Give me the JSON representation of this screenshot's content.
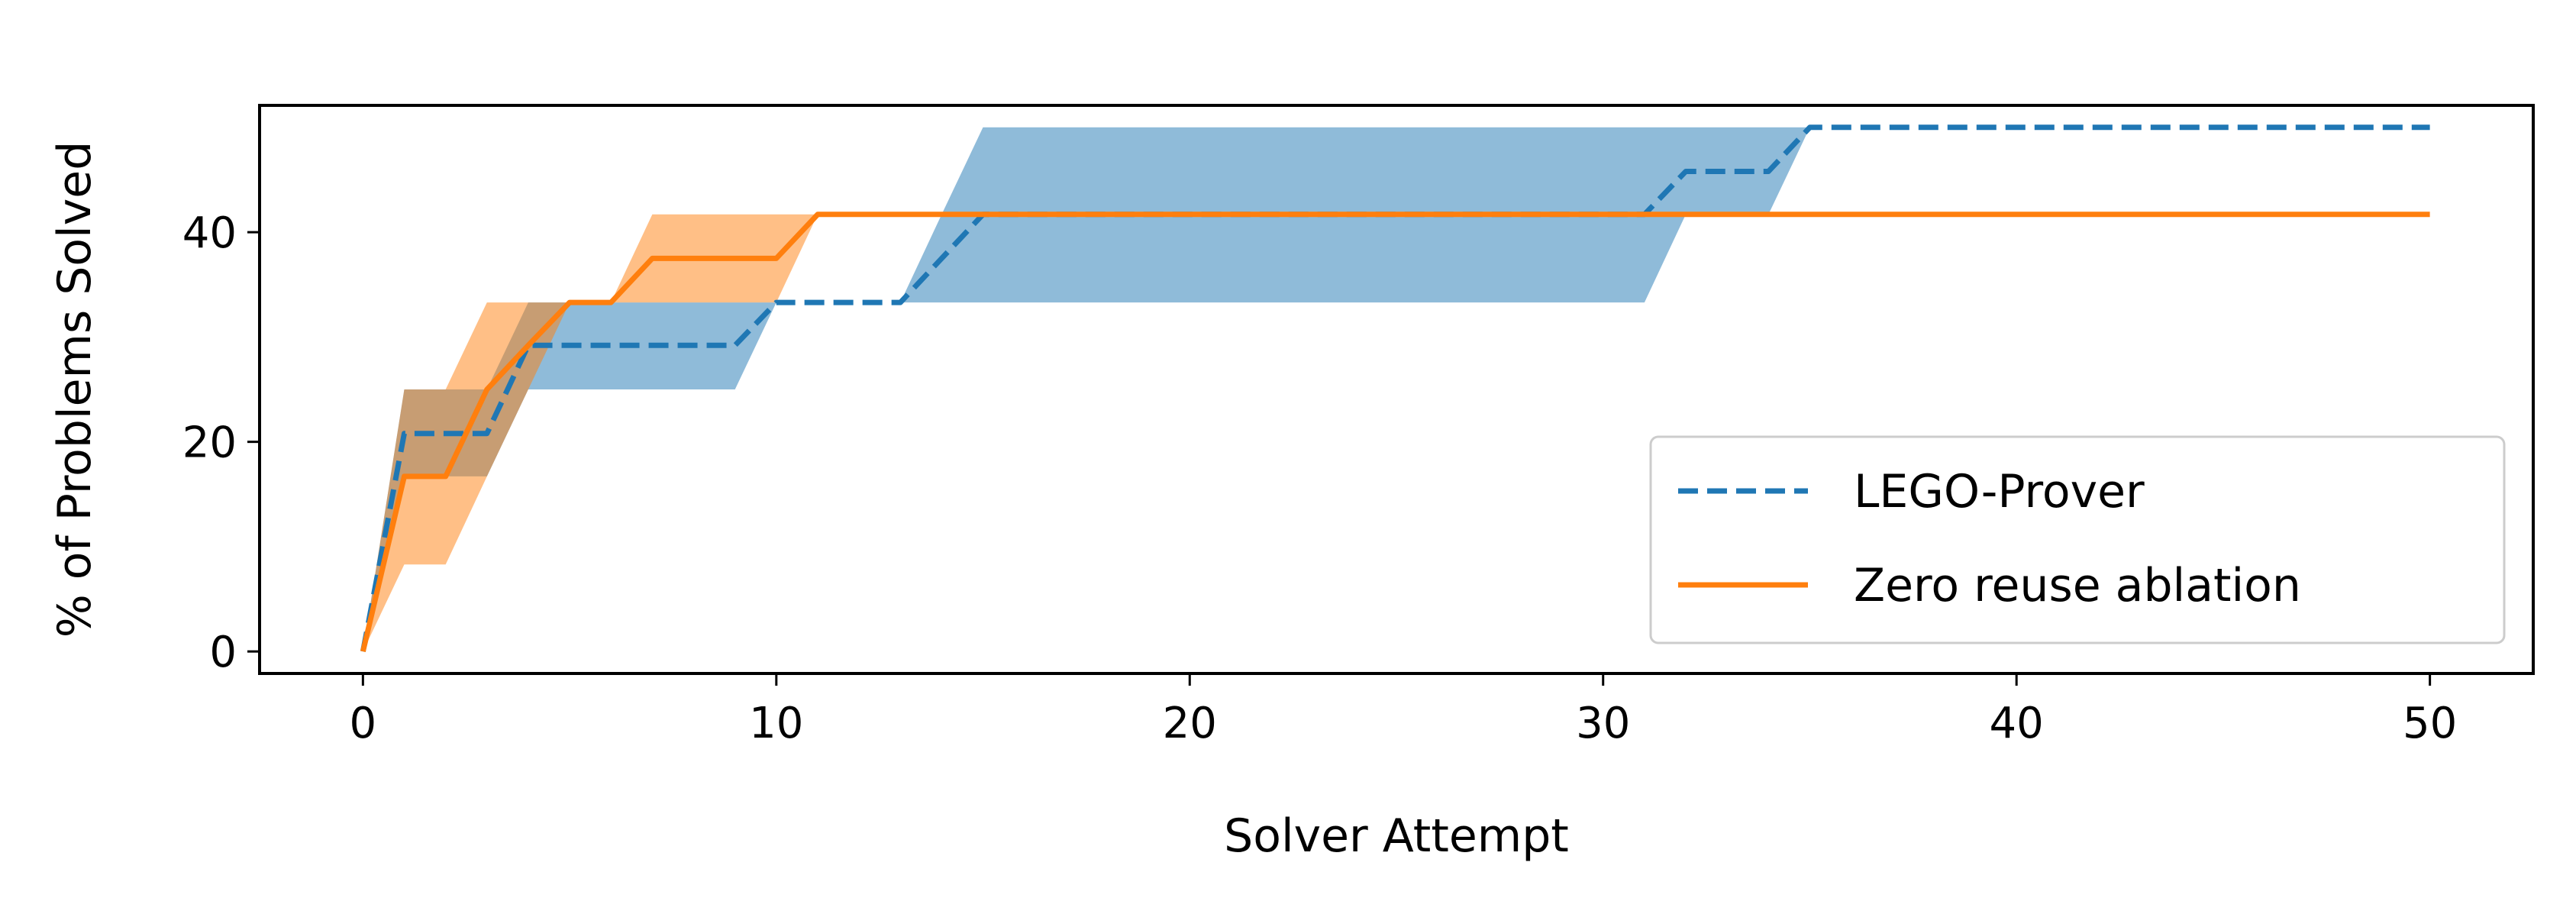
{
  "chart_data": {
    "type": "line",
    "title": "",
    "xlabel": "Solver Attempt",
    "ylabel": "% of Problems Solved",
    "xlim": [
      -2.5,
      52.5
    ],
    "ylim": [
      -2.1,
      52.1
    ],
    "xticks": [
      0,
      10,
      20,
      30,
      40,
      50
    ],
    "yticks": [
      0,
      20,
      40
    ],
    "grid": false,
    "legend_position": "lower right",
    "series": [
      {
        "name": "LEGO-Prover",
        "color": "#1f77b4",
        "linestyle": "dashed",
        "x": [
          0,
          1,
          2,
          3,
          4,
          5,
          6,
          7,
          8,
          9,
          10,
          11,
          12,
          13,
          14,
          15,
          16,
          20,
          25,
          30,
          31,
          32,
          33,
          34,
          35,
          40,
          45,
          50
        ],
        "y": [
          0,
          20.8,
          20.8,
          20.8,
          29.2,
          29.2,
          29.2,
          29.2,
          29.2,
          29.2,
          33.3,
          33.3,
          33.3,
          33.3,
          37.5,
          41.7,
          41.7,
          41.7,
          41.7,
          41.7,
          41.7,
          45.8,
          45.8,
          45.8,
          50.0,
          50.0,
          50.0,
          50.0
        ],
        "band_lower": [
          0,
          16.7,
          16.7,
          16.7,
          25.0,
          25.0,
          25.0,
          25.0,
          25.0,
          25.0,
          33.3,
          33.3,
          33.3,
          33.3,
          33.3,
          33.3,
          33.3,
          33.3,
          33.3,
          33.3,
          33.3,
          41.7,
          41.7,
          41.7,
          50.0,
          50.0,
          50.0,
          50.0
        ],
        "band_upper": [
          0,
          25.0,
          25.0,
          25.0,
          33.3,
          33.3,
          33.3,
          33.3,
          33.3,
          33.3,
          33.3,
          33.3,
          33.3,
          33.3,
          41.7,
          50.0,
          50.0,
          50.0,
          50.0,
          50.0,
          50.0,
          50.0,
          50.0,
          50.0,
          50.0,
          50.0,
          50.0,
          50.0
        ]
      },
      {
        "name": "Zero reuse ablation",
        "color": "#ff7f0e",
        "linestyle": "solid",
        "x": [
          0,
          1,
          2,
          3,
          4,
          5,
          6,
          7,
          8,
          9,
          10,
          11,
          15,
          20,
          30,
          40,
          50
        ],
        "y": [
          0,
          16.7,
          16.7,
          25.0,
          29.2,
          33.3,
          33.3,
          37.5,
          37.5,
          37.5,
          37.5,
          41.7,
          41.7,
          41.7,
          41.7,
          41.7,
          41.7
        ],
        "band_lower": [
          0,
          8.3,
          8.3,
          16.7,
          25.0,
          33.3,
          33.3,
          33.3,
          33.3,
          33.3,
          33.3,
          41.7,
          41.7,
          41.7,
          41.7,
          41.7,
          41.7
        ],
        "band_upper": [
          0,
          25.0,
          25.0,
          33.3,
          33.3,
          33.3,
          33.3,
          41.7,
          41.7,
          41.7,
          41.7,
          41.7,
          41.7,
          41.7,
          41.7,
          41.7,
          41.7
        ]
      }
    ]
  }
}
